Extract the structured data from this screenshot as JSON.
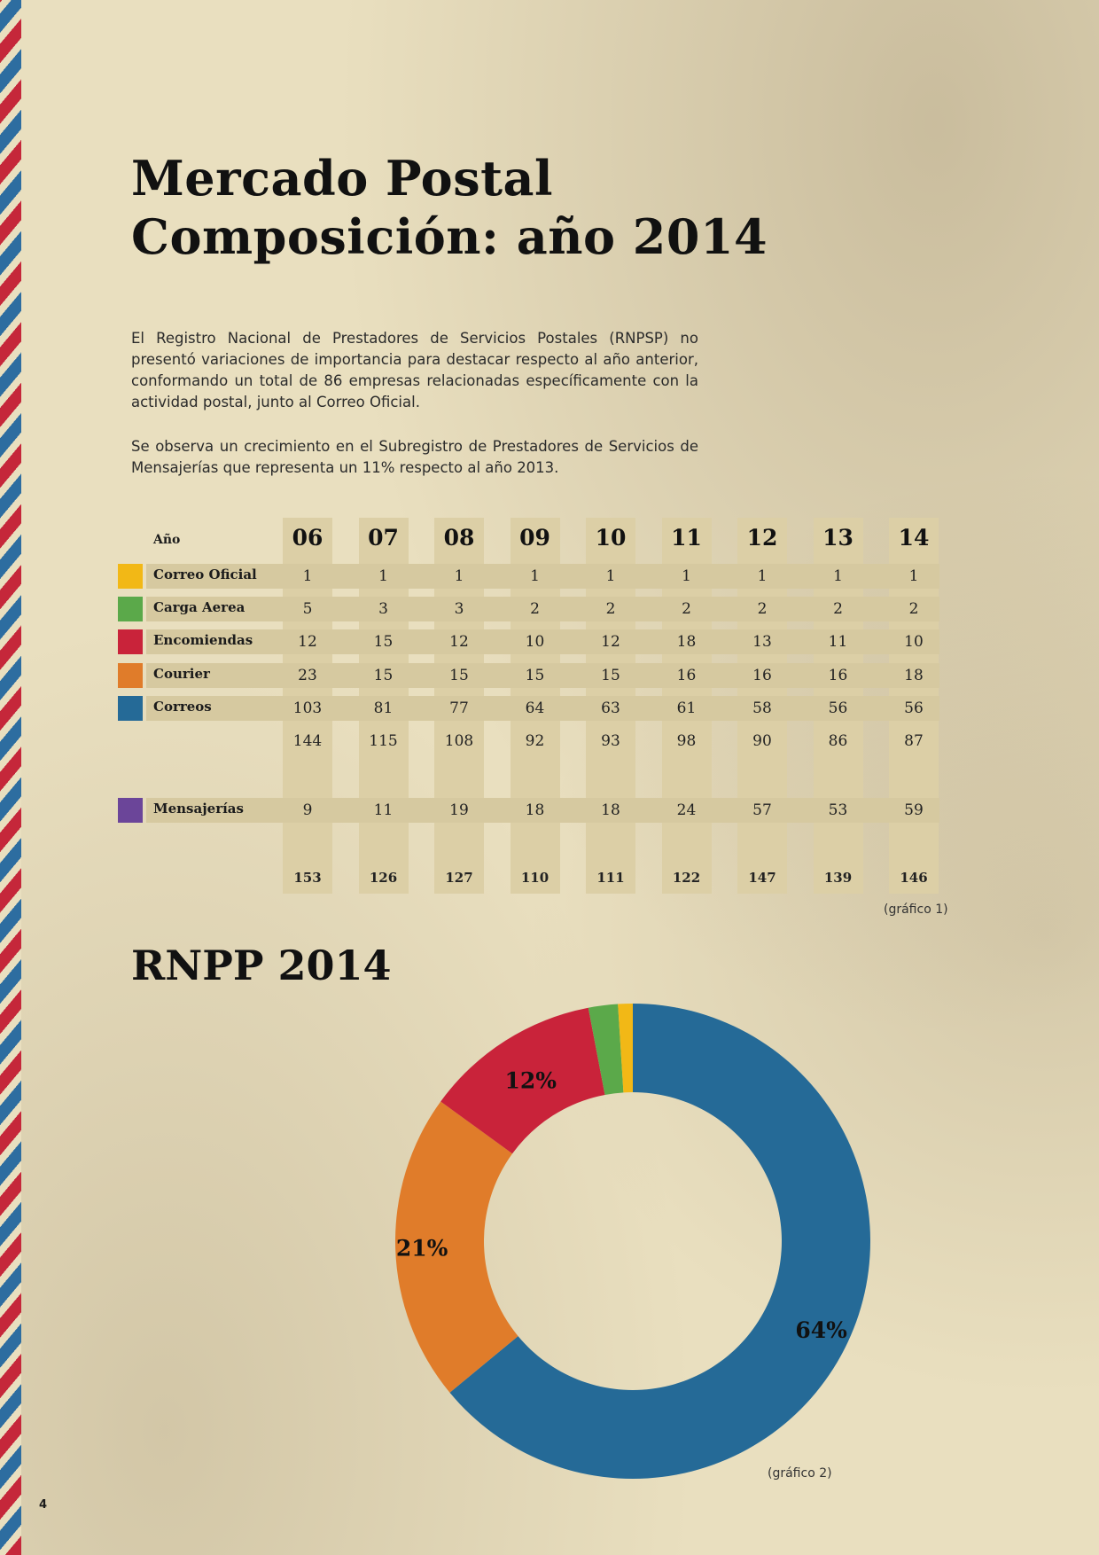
{
  "title_line1": "Mercado Postal",
  "title_line2": "Composición: año 2014",
  "paragraph1": "El Registro Nacional de Prestadores de Servicios Postales (RNPSP) no presentó variaciones de importancia para destacar respecto al año anterior, conformando un total de 86 empresas relacionadas específicamente con la actividad postal, junto al Correo Oficial.",
  "paragraph2": "Se observa un crecimiento en el Subregistro de Prestadores de Servicios de Mensajerías que representa un 11% respecto al año 2013.",
  "table": {
    "header_label": "Año",
    "years": [
      "06",
      "07",
      "08",
      "09",
      "10",
      "11",
      "12",
      "13",
      "14"
    ],
    "rows": [
      {
        "label": "Correo Oficial",
        "color": "#f2b816",
        "values": [
          "1",
          "1",
          "1",
          "1",
          "1",
          "1",
          "1",
          "1",
          "1"
        ]
      },
      {
        "label": "Carga Aerea",
        "color": "#5ba94a",
        "values": [
          "5",
          "3",
          "3",
          "2",
          "2",
          "2",
          "2",
          "2",
          "2"
        ]
      },
      {
        "label": "Encomiendas",
        "color": "#c9233a",
        "values": [
          "12",
          "15",
          "12",
          "10",
          "12",
          "18",
          "13",
          "11",
          "10"
        ]
      },
      {
        "label": "Courier",
        "color": "#e07c2a",
        "values": [
          "23",
          "15",
          "15",
          "15",
          "15",
          "16",
          "16",
          "16",
          "18"
        ]
      },
      {
        "label": "Correos",
        "color": "#256a97",
        "values": [
          "103",
          "81",
          "77",
          "64",
          "63",
          "61",
          "58",
          "56",
          "56"
        ]
      }
    ],
    "subtotals": [
      "144",
      "115",
      "108",
      "92",
      "93",
      "98",
      "90",
      "86",
      "87"
    ],
    "mensajerias": {
      "label": "Mensajerías",
      "color": "#6b4599",
      "values": [
        "9",
        "11",
        "19",
        "18",
        "18",
        "24",
        "57",
        "53",
        "59"
      ]
    },
    "totals": [
      "153",
      "126",
      "127",
      "110",
      "111",
      "122",
      "147",
      "139",
      "146"
    ],
    "caption": "(gráfico 1)"
  },
  "chart_title": "RNPP 2014",
  "chart_data": {
    "type": "pie",
    "title": "RNPP 2014",
    "donut": true,
    "slices": [
      {
        "label": "64%",
        "value": 64,
        "color": "#256a97"
      },
      {
        "label": "21%",
        "value": 21,
        "color": "#e07c2a"
      },
      {
        "label": "12%",
        "value": 12,
        "color": "#c9233a"
      },
      {
        "label": "2%",
        "value": 2,
        "color": "#5ba94a"
      },
      {
        "label": "1%",
        "value": 1,
        "color": "#f2b816"
      }
    ]
  },
  "chart_caption": "(gráfico 2)",
  "page_number": "4"
}
